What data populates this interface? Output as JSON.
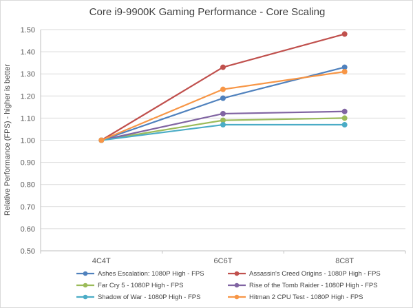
{
  "title": "Core i9-9900K Gaming Performance - Core Scaling",
  "chart_data": {
    "type": "line",
    "title": "Core i9-9900K Gaming Performance - Core Scaling",
    "categories": [
      "4C4T",
      "6C6T",
      "8C8T"
    ],
    "series": [
      {
        "name": "Ashes Escalation: 1080P High - FPS",
        "color": "#4F81BD",
        "values": [
          1.0,
          1.19,
          1.33
        ]
      },
      {
        "name": "Assassin's Creed Origins - 1080P High - FPS",
        "color": "#C0504D",
        "values": [
          1.0,
          1.33,
          1.48
        ]
      },
      {
        "name": "Far Cry 5 - 1080P High - FPS",
        "color": "#9BBB59",
        "values": [
          1.0,
          1.09,
          1.1
        ]
      },
      {
        "name": "Rise of the Tomb Raider - 1080P High - FPS",
        "color": "#8064A2",
        "values": [
          1.0,
          1.12,
          1.13
        ]
      },
      {
        "name": "Shadow of War - 1080P High - FPS",
        "color": "#4BACC6",
        "values": [
          1.0,
          1.07,
          1.07
        ]
      },
      {
        "name": "Hitman 2  CPU Test - 1080P High - FPS",
        "color": "#F79646",
        "values": [
          1.0,
          1.23,
          1.31
        ]
      }
    ],
    "xlabel": "",
    "ylabel": "Relative Performance (FPS) - higher is better",
    "ylim": [
      0.5,
      1.5
    ],
    "ytick_step": 0.1,
    "ytick_format_decimals": 2,
    "grid": true,
    "legend_position": "bottom",
    "colors": {
      "gridline": "#D9D9D9",
      "axis_line": "#BFBFBF",
      "tick_text": "#595959",
      "title_text": "#3F3F3F"
    }
  }
}
